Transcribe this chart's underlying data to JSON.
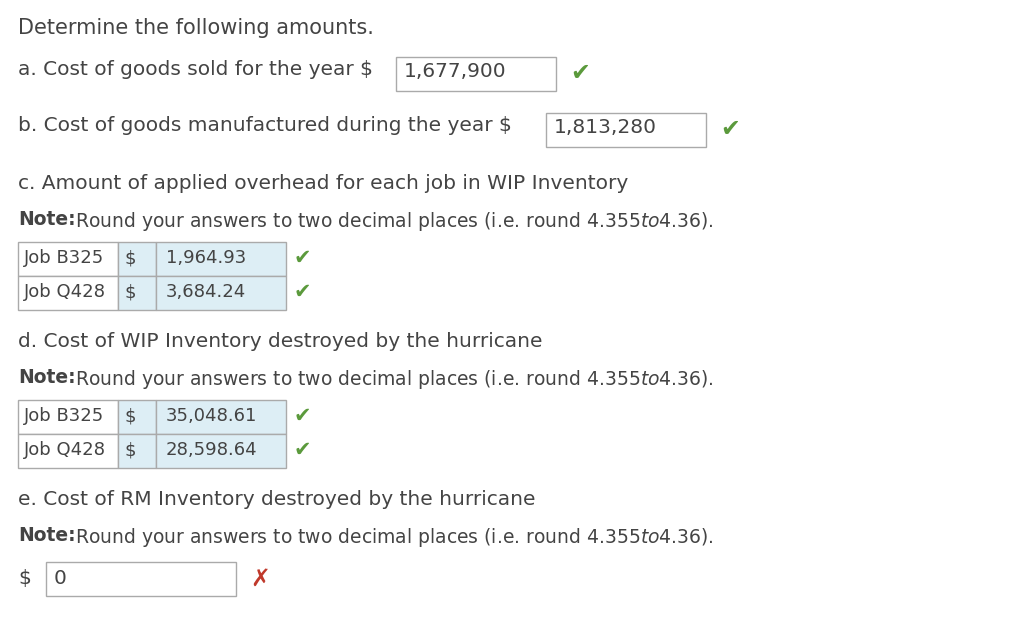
{
  "bg_color": "#ffffff",
  "title": "Determine the following amounts.",
  "item_a_label": "a. Cost of goods sold for the year $",
  "item_a_value": "1,677,900",
  "item_b_label": "b. Cost of goods manufactured during the year $",
  "item_b_value": "1,813,280",
  "item_c_label": "c. Amount of applied overhead for each job in WIP Inventory",
  "item_d_label": "d. Cost of WIP Inventory destroyed by the hurricane",
  "item_e_label": "e. Cost of RM Inventory destroyed by the hurricane",
  "note_text": "Round your answers to two decimal places (i.e. round $4.355 to $4.36).",
  "table_c_rows": [
    {
      "job": "Job B325",
      "dollar": "$",
      "value": "1,964.93",
      "check": true
    },
    {
      "job": "Job Q428",
      "dollar": "$",
      "value": "3,684.24",
      "check": true
    }
  ],
  "table_d_rows": [
    {
      "job": "Job B325",
      "dollar": "$",
      "value": "35,048.61",
      "check": true
    },
    {
      "job": "Job Q428",
      "dollar": "$",
      "value": "28,598.64",
      "check": true
    }
  ],
  "item_e_value": "0",
  "check_symbol": "✔",
  "x_symbol": "✗",
  "check_color": "#5b9a3c",
  "x_color": "#c0392b",
  "text_color": "#444444",
  "table_bg": "#ddeef5",
  "table_border": "#aaaaaa",
  "box_border": "#aaaaaa",
  "font_name": "DejaVu Sans",
  "title_fontsize": 15,
  "body_fontsize": 14.5,
  "note_fontsize": 13.5,
  "table_fontsize": 13,
  "check_fontsize": 15
}
